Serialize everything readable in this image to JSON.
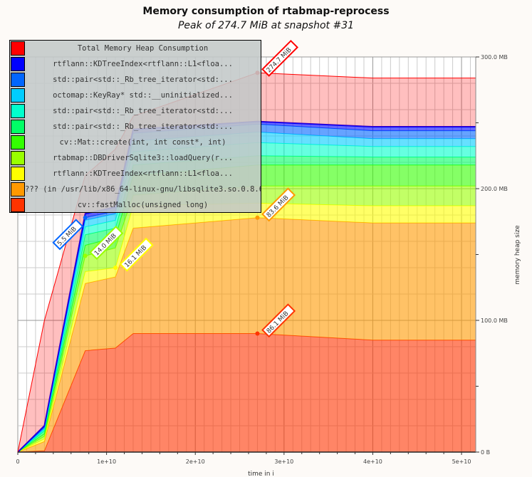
{
  "chart_data": {
    "type": "area",
    "stacked": true,
    "title": "Memory consumption of rtabmap-reprocess",
    "subtitle": "Peak of 274.7 MiB at snapshot #31",
    "xlabel": "time in i",
    "ylabel": "memory heap size",
    "xlim": [
      0,
      51600000000.0
    ],
    "ylim": [
      0,
      300
    ],
    "x_ticks": [
      {
        "v": 0,
        "label": "0"
      },
      {
        "v": 10000000000.0,
        "label": "1e+10"
      },
      {
        "v": 20000000000.0,
        "label": "2e+10"
      },
      {
        "v": 30000000000.0,
        "label": "3e+10"
      },
      {
        "v": 40000000000.0,
        "label": "4e+10"
      },
      {
        "v": 50000000000.0,
        "label": "5e+10"
      }
    ],
    "y_ticks": [
      {
        "v": 0,
        "label": "0 B"
      },
      {
        "v": 100,
        "label": "100.0 MB"
      },
      {
        "v": 200,
        "label": "200.0 MB"
      },
      {
        "v": 300,
        "label": "300.0 MB"
      }
    ],
    "grid": true,
    "legend_placement": "top-left",
    "x": [
      0,
      3000000000.0,
      7600000000.0,
      11000000000.0,
      13000000000.0,
      27000000000.0,
      40000000000.0,
      51600000000.0
    ],
    "series": [
      {
        "name": "cv::fastMalloc(unsigned long)",
        "color": "#ff3300",
        "values": [
          0,
          1,
          77,
          79,
          90,
          90,
          85,
          85
        ]
      },
      {
        "name": "??? (in /usr/lib/x86_64-linux-gnu/libsqlite3.so.0.8.6)",
        "color": "#ff9900",
        "values": [
          0,
          7,
          51,
          54,
          80,
          88,
          89,
          89
        ]
      },
      {
        "name": "rtflann::KDTreeIndex<rtflann::L1<floa...",
        "color": "#ffff00",
        "values": [
          0,
          2,
          9,
          7,
          17,
          11,
          13,
          13
        ]
      },
      {
        "name": "rtabmap::DBDriverSqlite3::loadQuery(r...",
        "color": "#99ff00",
        "values": [
          0,
          2,
          12,
          15,
          8,
          13,
          15,
          15
        ]
      },
      {
        "name": "cv::Mat::create(int, int const*, int)",
        "color": "#33ff00",
        "values": [
          0,
          2,
          8,
          8,
          15,
          16,
          16,
          16
        ]
      },
      {
        "name": "std::pair<std::_Rb_tree_iterator<std:...",
        "color": "#00ff66",
        "values": [
          0,
          2,
          8,
          7,
          8,
          7,
          6,
          6
        ]
      },
      {
        "name": "std::pair<std::_Rb_tree_iterator<std:...",
        "color": "#00ffcc",
        "values": [
          0,
          1,
          6,
          6,
          10,
          10,
          8,
          8
        ]
      },
      {
        "name": "octomap::KeyRay* std::__uninitialized...",
        "color": "#00ccff",
        "values": [
          0,
          1,
          5,
          5,
          8,
          8,
          6,
          6
        ]
      },
      {
        "name": "std::pair<std::_Rb_tree_iterator<std:...",
        "color": "#0066ff",
        "values": [
          0,
          1,
          2,
          2,
          6,
          6,
          6,
          6
        ]
      },
      {
        "name": "rtflann::KDTreeIndex<rtflann::L1<floa...",
        "color": "#0000ff",
        "values": [
          0,
          1,
          3,
          3,
          3,
          2,
          3,
          3
        ]
      },
      {
        "name": "Total Memory Heap Consumption",
        "color": "#ff0000",
        "values": [
          0,
          80,
          29,
          44,
          10,
          37,
          37,
          37
        ]
      }
    ],
    "annotations": [
      {
        "label": "274.7 MiB",
        "x": 27000000000.0,
        "y": 288,
        "color": "#ff0000"
      },
      {
        "label": "83.6 MiB",
        "x": 27000000000.0,
        "y": 178,
        "color": "#ff9900"
      },
      {
        "label": "86.1 MiB",
        "x": 27000000000.0,
        "y": 90,
        "color": "#ff3300"
      },
      {
        "label": "16.1 MiB",
        "x": 11000000000.0,
        "y": 140,
        "color": "#ffff00"
      },
      {
        "label": "14.0 MiB",
        "x": 7600000000.0,
        "y": 149,
        "color": "#99ff00"
      },
      {
        "label": "5.5 MiB",
        "x": 7600000000.0,
        "y": 178,
        "color": "#0066ff"
      }
    ]
  }
}
